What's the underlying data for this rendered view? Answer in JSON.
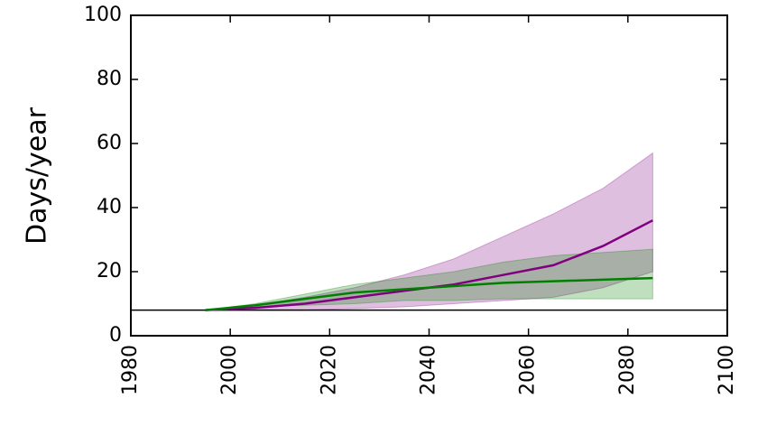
{
  "chart_data": {
    "type": "line",
    "ylabel": "Days/year",
    "x": [
      1995,
      2005,
      2015,
      2025,
      2035,
      2045,
      2055,
      2065,
      2075,
      2085
    ],
    "series": [
      {
        "color": "#800080",
        "values": [
          8,
          8.7,
          10,
          12,
          14,
          16,
          19,
          22,
          28,
          36
        ],
        "upper": [
          8,
          9.5,
          12,
          15,
          19,
          24,
          31,
          38,
          46,
          57
        ],
        "lower": [
          8,
          8,
          8,
          8.5,
          9,
          10,
          11,
          12,
          15,
          20
        ]
      },
      {
        "color": "#008000",
        "values": [
          8,
          9.5,
          11.5,
          13.5,
          14.5,
          15.5,
          16.5,
          17,
          17.5,
          18
        ],
        "upper": [
          8,
          10,
          13,
          16,
          18,
          20,
          23,
          25,
          26,
          27
        ],
        "lower": [
          8,
          9,
          9.5,
          10,
          11,
          11,
          11.5,
          11.5,
          11.5,
          11.5
        ]
      }
    ],
    "hline": 8,
    "xlim": [
      1980,
      2100
    ],
    "xticks": [
      1980,
      2000,
      2020,
      2040,
      2060,
      2080,
      2100
    ],
    "ylim": [
      0,
      100
    ],
    "yticks": [
      0,
      20,
      40,
      60,
      80,
      100
    ]
  }
}
